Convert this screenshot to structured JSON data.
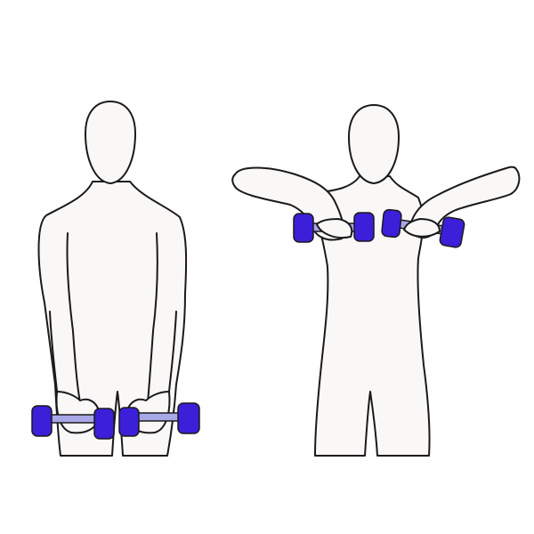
{
  "colors": {
    "background": "#ffffff",
    "skin": "#faf7f7",
    "outline": "#1a1a1a",
    "dumbbell_weight": "#3b1fd9",
    "dumbbell_bar": "#a8a8e8"
  },
  "figures": [
    {
      "pose": "start",
      "arms": "down",
      "dumbbells": 2
    },
    {
      "pose": "end",
      "arms": "raised",
      "dumbbells": 2
    }
  ]
}
